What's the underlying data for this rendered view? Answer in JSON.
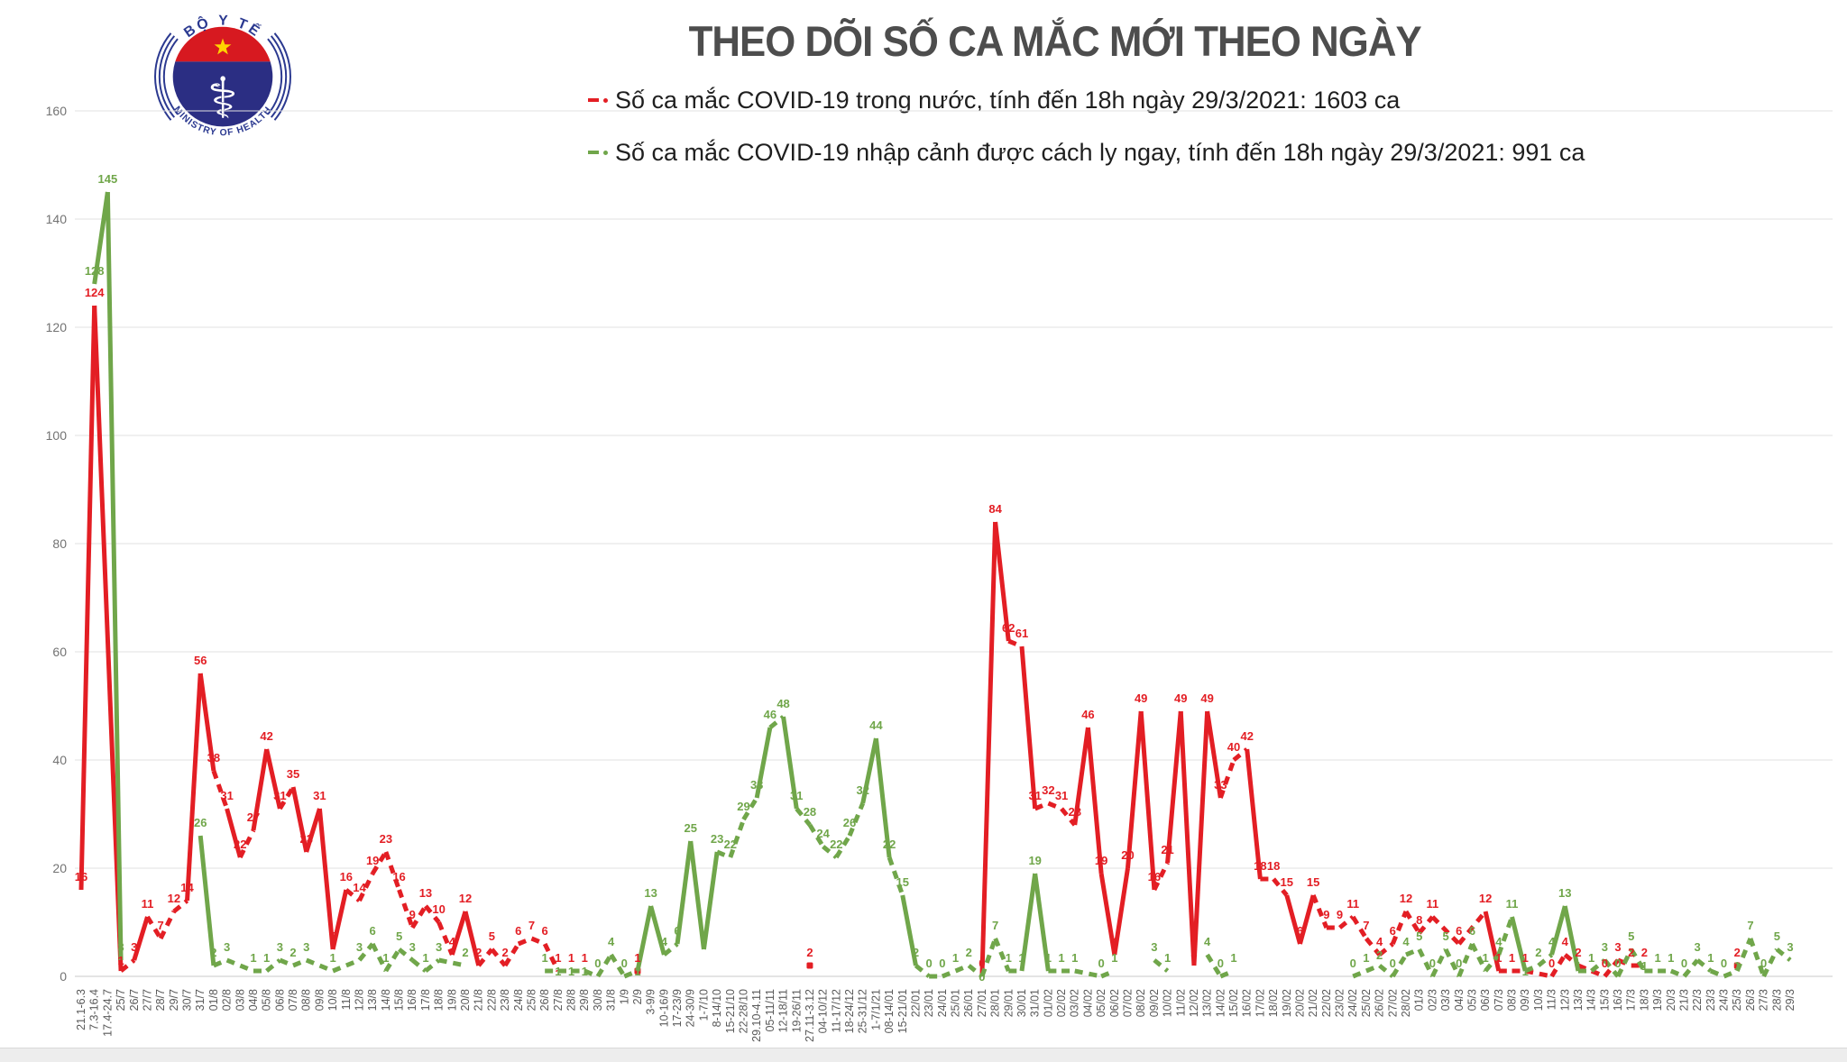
{
  "header": {
    "title": "THEO DÕI SỐ CA MẮC MỚI THEO NGÀY",
    "logo": {
      "top_text": "BỘ Y TẾ",
      "bottom_text": "MINISTRY OF HEALTH",
      "caduceus_glyph": "⚕"
    },
    "legend": [
      {
        "label": "Số ca mắc COVID-19 trong nước, tính đến 18h ngày 29/3/2021: 1603 ca",
        "color": "#e31e24"
      },
      {
        "label": "Số ca mắc COVID-19 nhập cảnh được cách ly ngay, tính đến 18h ngày 29/3/2021: 991 ca",
        "color": "#70a64a"
      }
    ]
  },
  "chart_data": {
    "type": "line",
    "title": "THEO DÕI SỐ CA MẮC MỚI THEO NGÀY",
    "xlabel": "",
    "ylabel": "",
    "ylim": [
      0,
      160
    ],
    "ytick_step": 20,
    "grid": true,
    "legend_position": "top",
    "categories": [
      "21.1-6.3",
      "7.3-16.4",
      "17.4-24.7",
      "25/7",
      "26/7",
      "27/7",
      "28/7",
      "29/7",
      "30/7",
      "31/7",
      "01/8",
      "02/8",
      "03/8",
      "04/8",
      "05/8",
      "06/8",
      "07/8",
      "08/8",
      "09/8",
      "10/8",
      "11/8",
      "12/8",
      "13/8",
      "14/8",
      "15/8",
      "16/8",
      "17/8",
      "18/8",
      "19/8",
      "20/8",
      "21/8",
      "22/8",
      "23/8",
      "24/8",
      "25/8",
      "26/8",
      "27/8",
      "28/8",
      "29/8",
      "30/8",
      "31/8",
      "1/9",
      "2/9",
      "3-9/9",
      "10-16/9",
      "17-23/9",
      "24-30/9",
      "1-7/10",
      "8-14/10",
      "15-21/10",
      "22-28/10",
      "29.10-4.11",
      "05-11/11",
      "12-18/11",
      "19-26/11",
      "27.11-3.12",
      "04-10/12",
      "11-17/12",
      "18-24/12",
      "25-31/12",
      "1-7/1/21",
      "08-14/01",
      "15-21/01",
      "22/01",
      "23/01",
      "24/01",
      "25/01",
      "26/01",
      "27/01",
      "28/01",
      "29/01",
      "30/01",
      "31/01",
      "01/02",
      "02/02",
      "03/02",
      "04/02",
      "05/02",
      "06/02",
      "07/02",
      "08/02",
      "09/02",
      "10/02",
      "11/02",
      "12/02",
      "13/02",
      "14/02",
      "15/02",
      "16/02",
      "17/02",
      "18/02",
      "19/02",
      "20/02",
      "21/02",
      "22/02",
      "23/02",
      "24/02",
      "25/02",
      "26/02",
      "27/02",
      "28/02",
      "01/3",
      "02/3",
      "03/3",
      "04/3",
      "05/3",
      "06/3",
      "07/3",
      "08/3",
      "09/3",
      "10/3",
      "11/3",
      "12/3",
      "13/3",
      "14/3",
      "15/3",
      "16/3",
      "17/3",
      "18/3",
      "19/3",
      "20/3",
      "21/3",
      "22/3",
      "23/3",
      "24/3",
      "25/3",
      "26/3",
      "27/3",
      "28/3",
      "29/3"
    ],
    "series": [
      {
        "name": "Số ca mắc COVID-19 trong nước",
        "color": "#e31e24",
        "values": [
          16,
          124,
          null,
          1,
          3,
          11,
          7,
          12,
          14,
          56,
          38,
          31,
          22,
          27,
          42,
          31,
          35,
          23,
          31,
          5,
          16,
          14,
          19,
          23,
          16,
          9,
          13,
          10,
          4,
          12,
          2,
          5,
          2,
          6,
          7,
          6,
          1,
          1,
          1,
          null,
          null,
          null,
          1,
          null,
          null,
          null,
          null,
          null,
          null,
          null,
          null,
          null,
          null,
          null,
          null,
          2,
          null,
          null,
          null,
          null,
          null,
          null,
          null,
          null,
          null,
          null,
          null,
          null,
          0,
          84,
          62,
          61,
          31,
          32,
          31,
          28,
          46,
          19,
          4,
          20,
          49,
          16,
          21,
          49,
          2,
          49,
          33,
          40,
          42,
          18,
          18,
          15,
          6,
          15,
          9,
          9,
          11,
          7,
          4,
          6,
          12,
          8,
          11,
          null,
          6,
          null,
          12,
          1,
          1,
          1,
          null,
          0,
          4,
          2,
          null,
          0,
          3,
          2,
          2,
          null,
          null,
          null,
          null,
          null,
          null,
          2,
          null,
          null,
          null,
          null
        ]
      },
      {
        "name": "Số ca mắc COVID-19 nhập cảnh được cách ly ngay",
        "color": "#70a64a",
        "values": [
          null,
          128,
          145,
          3,
          null,
          null,
          null,
          null,
          null,
          26,
          2,
          3,
          null,
          1,
          1,
          3,
          2,
          3,
          null,
          1,
          null,
          3,
          6,
          1,
          5,
          3,
          1,
          3,
          null,
          2,
          null,
          null,
          null,
          null,
          null,
          1,
          1,
          1,
          1,
          0,
          4,
          0,
          1,
          13,
          4,
          6,
          25,
          5,
          23,
          22,
          29,
          33,
          46,
          48,
          31,
          28,
          24,
          22,
          26,
          32,
          44,
          22,
          15,
          2,
          0,
          0,
          1,
          2,
          0,
          7,
          1,
          1,
          19,
          1,
          1,
          1,
          null,
          0,
          1,
          null,
          null,
          3,
          1,
          null,
          null,
          4,
          0,
          1,
          null,
          null,
          null,
          null,
          null,
          null,
          null,
          null,
          0,
          1,
          2,
          0,
          4,
          5,
          0,
          5,
          0,
          6,
          1,
          4,
          11,
          1,
          2,
          4,
          13,
          1,
          1,
          3,
          0,
          5,
          1,
          1,
          1,
          0,
          3,
          1,
          0,
          1,
          7,
          0,
          5,
          3
        ]
      }
    ]
  }
}
